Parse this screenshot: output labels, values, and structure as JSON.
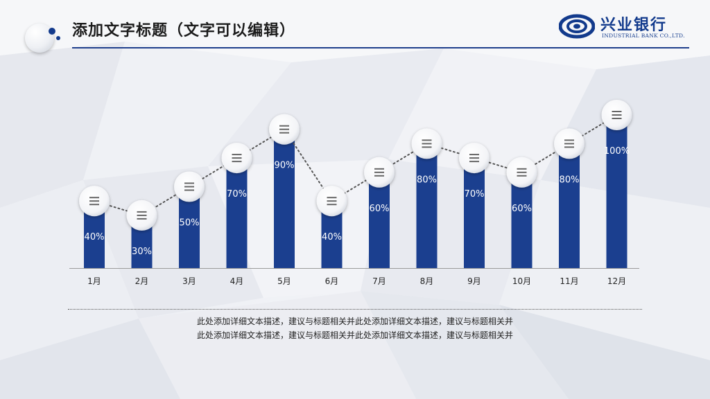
{
  "header": {
    "title": "添加文字标题（文字可以编辑）",
    "logo_icon": "dotted-circle-logo-icon"
  },
  "bank": {
    "name": "兴业银行",
    "english": "INDUSTRIAL BANK CO.,LTD.",
    "icon": "industrial-bank-logo-icon",
    "color": "#123a8c"
  },
  "theme": {
    "bar_color": "#1b3f8f",
    "accent": "#1f3f8c",
    "connector_color": "#555555",
    "marker_icon": "list-lines-icon"
  },
  "chart_data": {
    "type": "bar",
    "categories": [
      "1月",
      "2月",
      "3月",
      "4月",
      "5月",
      "6月",
      "7月",
      "8月",
      "9月",
      "10月",
      "11月",
      "12月"
    ],
    "values": [
      40,
      30,
      50,
      70,
      90,
      40,
      60,
      80,
      70,
      60,
      80,
      100
    ],
    "data_labels": [
      "40%",
      "30%",
      "50%",
      "70%",
      "90%",
      "40%",
      "60%",
      "80%",
      "70%",
      "60%",
      "80%",
      "100%"
    ],
    "ylim": [
      0,
      100
    ],
    "grid": false,
    "legend": "none"
  },
  "description": {
    "line1": "此处添加详细文本描述，建议与标题相关并此处添加详细文本描述，建议与标题相关并",
    "line2": "此处添加详细文本描述，建议与标题相关并此处添加详细文本描述，建议与标题相关并"
  }
}
